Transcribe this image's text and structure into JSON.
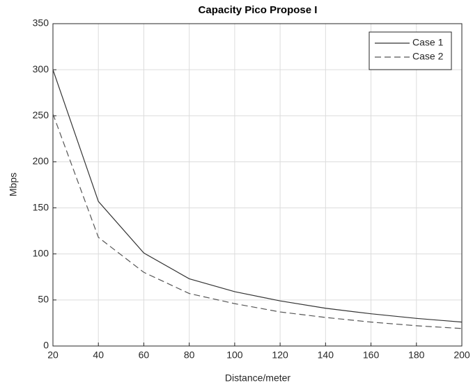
{
  "chart_data": {
    "type": "line",
    "title": "Capacity Pico Propose I",
    "x_label": "Distance/meter",
    "y_label": "Mbps",
    "x": [
      20,
      40,
      60,
      80,
      100,
      120,
      140,
      160,
      180,
      200
    ],
    "series": [
      {
        "name": "Case 1",
        "color": "#333333",
        "linestyle": "solid",
        "values": [
          300,
          157,
          101,
          73,
          59,
          49,
          41,
          35,
          30,
          26
        ]
      },
      {
        "name": "Case 2",
        "color": "#555555",
        "linestyle": "dashed",
        "values": [
          252,
          118,
          80,
          57,
          46,
          37,
          31,
          26,
          22,
          19
        ]
      }
    ],
    "xlim": [
      20,
      200
    ],
    "xticks": [
      20,
      40,
      60,
      80,
      100,
      120,
      140,
      160,
      180,
      200
    ],
    "ylim": [
      0,
      350
    ],
    "yticks": [
      0,
      50,
      100,
      150,
      200,
      250,
      300,
      350
    ],
    "grid": true,
    "legend": "northeast"
  }
}
